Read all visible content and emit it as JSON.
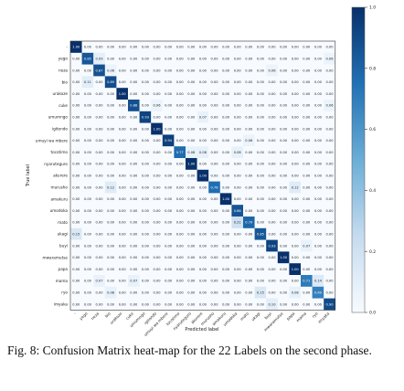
{
  "chart_data": {
    "type": "heatmap",
    "xlabel": "Predicted label",
    "ylabel": "True label",
    "labels": [
      "-",
      "yego",
      "neza",
      "bio",
      "urakoze",
      "cuke",
      "umumngo",
      "igitondo",
      "umuyi wa mbere",
      "tocotimo",
      "nyaruteguro",
      "akurere",
      "murusho",
      "amakuru",
      "umodoka",
      "mato",
      "ukagi",
      "buyi",
      "mwaramutse",
      "papa",
      "mama",
      "ryo",
      "imyaka"
    ],
    "matrix": [
      [
        1.0,
        0.0,
        0.0,
        0.0,
        0.0,
        0.0,
        0.0,
        0.0,
        0.0,
        0.0,
        0.0,
        0.0,
        0.0,
        0.0,
        0.0,
        0.0,
        0.0,
        0.0,
        0.0,
        0.0,
        0.0,
        0.0,
        0.0
      ],
      [
        0.0,
        0.85,
        0.09,
        0.0,
        0.0,
        0.0,
        0.0,
        0.0,
        0.0,
        0.0,
        0.0,
        0.0,
        0.0,
        0.0,
        0.0,
        0.0,
        0.0,
        0.0,
        0.0,
        0.0,
        0.0,
        0.0,
        0.06
      ],
      [
        0.0,
        0.0,
        0.87,
        0.06,
        0.0,
        0.0,
        0.0,
        0.0,
        0.0,
        0.0,
        0.0,
        0.0,
        0.0,
        0.0,
        0.0,
        0.0,
        0.0,
        0.06,
        0.0,
        0.0,
        0.0,
        0.0,
        0.0
      ],
      [
        0.0,
        0.11,
        0.0,
        0.89,
        0.0,
        0.0,
        0.0,
        0.0,
        0.0,
        0.0,
        0.0,
        0.0,
        0.0,
        0.0,
        0.0,
        0.0,
        0.0,
        0.0,
        0.0,
        0.0,
        0.0,
        0.0,
        0.0
      ],
      [
        0.0,
        0.0,
        0.0,
        0.0,
        1.0,
        0.0,
        0.0,
        0.0,
        0.0,
        0.0,
        0.0,
        0.0,
        0.0,
        0.0,
        0.0,
        0.0,
        0.0,
        0.0,
        0.0,
        0.0,
        0.0,
        0.0,
        0.0
      ],
      [
        0.0,
        0.0,
        0.0,
        0.0,
        0.0,
        0.88,
        0.0,
        0.06,
        0.0,
        0.0,
        0.0,
        0.0,
        0.0,
        0.0,
        0.0,
        0.0,
        0.0,
        0.0,
        0.0,
        0.0,
        0.0,
        0.0,
        0.06
      ],
      [
        0.0,
        0.0,
        0.0,
        0.0,
        0.0,
        0.0,
        0.93,
        0.0,
        0.0,
        0.0,
        0.0,
        0.07,
        0.0,
        0.0,
        0.0,
        0.0,
        0.0,
        0.0,
        0.0,
        0.0,
        0.0,
        0.0,
        0.0
      ],
      [
        0.0,
        0.0,
        0.0,
        0.0,
        0.0,
        0.0,
        0.0,
        1.0,
        0.0,
        0.0,
        0.0,
        0.0,
        0.0,
        0.0,
        0.0,
        0.0,
        0.0,
        0.0,
        0.0,
        0.0,
        0.0,
        0.0,
        0.0
      ],
      [
        0.0,
        0.0,
        0.0,
        0.0,
        0.0,
        0.0,
        0.0,
        0.0,
        0.94,
        0.0,
        0.0,
        0.0,
        0.0,
        0.0,
        0.0,
        0.06,
        0.0,
        0.0,
        0.0,
        0.0,
        0.0,
        0.0,
        0.0
      ],
      [
        0.0,
        0.0,
        0.0,
        0.0,
        0.0,
        0.0,
        0.0,
        0.0,
        0.0,
        0.77,
        0.08,
        0.08,
        0.0,
        0.0,
        0.08,
        0.0,
        0.0,
        0.0,
        0.0,
        0.0,
        0.0,
        0.0,
        0.0
      ],
      [
        0.0,
        0.0,
        0.0,
        0.0,
        0.0,
        0.0,
        0.0,
        0.0,
        0.0,
        0.0,
        1.0,
        0.0,
        0.0,
        0.0,
        0.0,
        0.0,
        0.0,
        0.0,
        0.0,
        0.0,
        0.0,
        0.0,
        0.0
      ],
      [
        0.0,
        0.0,
        0.0,
        0.0,
        0.0,
        0.0,
        0.0,
        0.0,
        0.0,
        0.0,
        0.0,
        1.0,
        0.0,
        0.0,
        0.0,
        0.0,
        0.0,
        0.0,
        0.0,
        0.0,
        0.0,
        0.0,
        0.0
      ],
      [
        0.0,
        0.0,
        0.0,
        0.12,
        0.0,
        0.0,
        0.0,
        0.0,
        0.0,
        0.0,
        0.0,
        0.0,
        0.76,
        0.0,
        0.0,
        0.0,
        0.0,
        0.0,
        0.0,
        0.12,
        0.0,
        0.0,
        0.0
      ],
      [
        0.0,
        0.0,
        0.0,
        0.0,
        0.0,
        0.0,
        0.0,
        0.0,
        0.0,
        0.0,
        0.0,
        0.0,
        0.0,
        1.0,
        0.0,
        0.0,
        0.0,
        0.0,
        0.0,
        0.0,
        0.0,
        0.0,
        0.0
      ],
      [
        0.0,
        0.0,
        0.0,
        0.0,
        0.0,
        0.0,
        0.0,
        0.0,
        0.0,
        0.0,
        0.0,
        0.0,
        0.0,
        0.0,
        0.86,
        0.0,
        0.0,
        0.0,
        0.0,
        0.0,
        0.0,
        0.0,
        0.0
      ],
      [
        0.0,
        0.0,
        0.0,
        0.0,
        0.0,
        0.0,
        0.0,
        0.0,
        0.0,
        0.0,
        0.0,
        0.0,
        0.0,
        0.0,
        0.21,
        0.79,
        0.0,
        0.0,
        0.0,
        0.0,
        0.0,
        0.0,
        0.0
      ],
      [
        0.15,
        0.0,
        0.0,
        0.0,
        0.0,
        0.0,
        0.0,
        0.0,
        0.0,
        0.0,
        0.0,
        0.0,
        0.0,
        0.0,
        0.0,
        0.0,
        0.85,
        0.0,
        0.0,
        0.0,
        0.0,
        0.0,
        0.0
      ],
      [
        0.0,
        0.0,
        0.0,
        0.0,
        0.0,
        0.0,
        0.0,
        0.0,
        0.0,
        0.0,
        0.0,
        0.0,
        0.0,
        0.0,
        0.0,
        0.0,
        0.0,
        0.93,
        0.0,
        0.0,
        0.07,
        0.0,
        0.0
      ],
      [
        0.0,
        0.0,
        0.0,
        0.0,
        0.0,
        0.0,
        0.0,
        0.0,
        0.0,
        0.0,
        0.0,
        0.0,
        0.0,
        0.0,
        0.0,
        0.0,
        0.0,
        0.0,
        1.0,
        0.0,
        0.0,
        0.0,
        0.0
      ],
      [
        0.0,
        0.0,
        0.0,
        0.0,
        0.0,
        0.0,
        0.0,
        0.0,
        0.0,
        0.0,
        0.0,
        0.0,
        0.0,
        0.0,
        0.0,
        0.0,
        0.0,
        0.0,
        0.0,
        1.0,
        0.0,
        0.0,
        0.0
      ],
      [
        0.0,
        0.0,
        0.07,
        0.0,
        0.0,
        0.07,
        0.0,
        0.0,
        0.0,
        0.0,
        0.0,
        0.0,
        0.0,
        0.0,
        0.0,
        0.0,
        0.0,
        0.0,
        0.0,
        0.0,
        0.71,
        0.14,
        0.0
      ],
      [
        0.0,
        0.0,
        0.0,
        0.08,
        0.0,
        0.0,
        0.0,
        0.0,
        0.0,
        0.0,
        0.0,
        0.0,
        0.0,
        0.0,
        0.0,
        0.0,
        0.15,
        0.0,
        0.0,
        0.08,
        0.0,
        0.69,
        0.0
      ],
      [
        0.0,
        0.0,
        0.0,
        0.0,
        0.0,
        0.0,
        0.0,
        0.0,
        0.0,
        0.0,
        0.0,
        0.0,
        0.0,
        0.0,
        0.0,
        0.0,
        0.0,
        0.1,
        0.0,
        0.0,
        0.0,
        0.0,
        0.9
      ]
    ],
    "colorbar": {
      "range": [
        0.0,
        1.0
      ],
      "ticks": [
        "0.0",
        "0.2",
        "0.4",
        "0.6",
        "0.8",
        "1.0"
      ]
    },
    "colors": {
      "low": "#f7fbff",
      "mid": "#6baed6",
      "high": "#08306b"
    }
  },
  "caption": "Fig. 8: Confusion Matrix heat-map for the 22 Labels on the second phase."
}
